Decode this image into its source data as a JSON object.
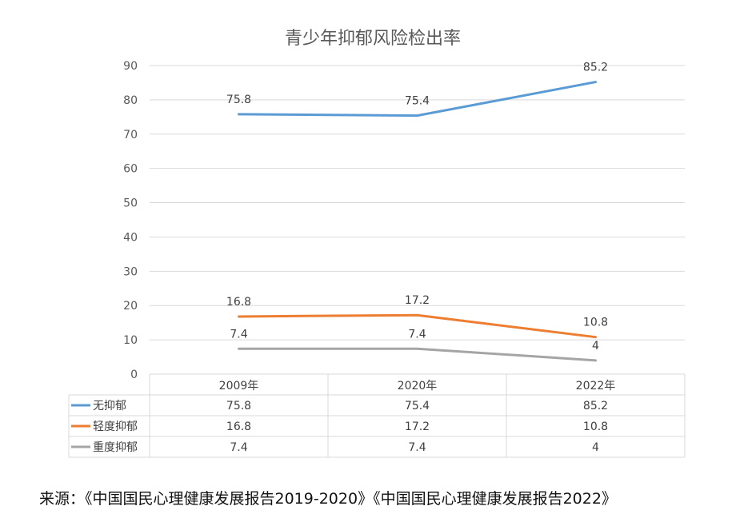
{
  "chart_data": {
    "type": "line",
    "title": "青少年抑郁风险检出率",
    "categories": [
      "2009年",
      "2020年",
      "2022年"
    ],
    "ylim": [
      0,
      90
    ],
    "yticks": [
      0,
      10,
      20,
      30,
      40,
      50,
      60,
      70,
      80,
      90
    ],
    "grid": true,
    "legend": "data-table",
    "series": [
      {
        "name": "无抑郁",
        "values": [
          75.8,
          75.4,
          85.2
        ],
        "labels": [
          "75.8",
          "75.4",
          "85.2"
        ],
        "color": "#5B9BD5"
      },
      {
        "name": "轻度抑郁",
        "values": [
          16.8,
          17.2,
          10.8
        ],
        "labels": [
          "16.8",
          "17.2",
          "10.8"
        ],
        "color": "#ED7D31"
      },
      {
        "name": "重度抑郁",
        "values": [
          7.4,
          7.4,
          4
        ],
        "labels": [
          "7.4",
          "7.4",
          "4"
        ],
        "color": "#A5A5A5"
      }
    ]
  },
  "source_note": "来源：《中国国民心理健康发展报告2019-2020》《中国国民心理健康发展报告2022》"
}
